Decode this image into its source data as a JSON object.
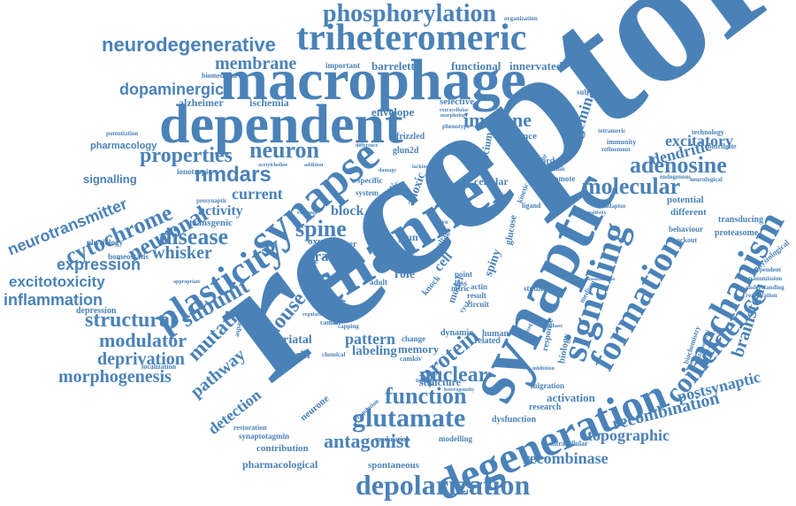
{
  "colors": {
    "word": "#4a82b8",
    "background": "#ffffff"
  },
  "words": [
    "receptor",
    "synaptic",
    "channel",
    "macrophage",
    "dependent",
    "triheteromeric",
    "phosphorylation",
    "synapse",
    "plasticity",
    "degeneration",
    "signaling",
    "mechanism",
    "formation",
    "coincidence",
    "glutamate",
    "depolarization",
    "neurodegenerative",
    "dopaminergic",
    "membrane",
    "adenosine",
    "molecular",
    "nmdars",
    "properties",
    "neuron",
    "structural",
    "modulator",
    "deprivation",
    "morphogenesis",
    "inflammation",
    "excitotoxicity",
    "expression",
    "neurotransmitter",
    "cytochrome",
    "neuronal",
    "disease",
    "whisker",
    "subunit",
    "mutation",
    "pathway",
    "detection",
    "function",
    "antagonist",
    "nuclear",
    "protein",
    "recombination",
    "topographic",
    "recombinase",
    "postsynaptic",
    "brainstem",
    "excitatory",
    "dendritic",
    "immune",
    "trigeminal",
    "spine",
    "current",
    "activity",
    "mouse",
    "brain",
    "block",
    "signalling",
    "pharmacology",
    "alzheimer",
    "ischemia",
    "barrelette",
    "functional",
    "innervated",
    "important",
    "envelope",
    "selective",
    "striatal",
    "tenascin",
    "pattern",
    "labeling",
    "memory",
    "structure",
    "activation",
    "research",
    "migration",
    "dysfunction",
    "modelling",
    "spontaneous",
    "pharmacological",
    "contribution",
    "synaptotagmin",
    "restoration",
    "modulation",
    "neurone",
    "localization",
    "depression",
    "physiology",
    "homeostasis",
    "transgenic",
    "ionotropic",
    "biomedicine",
    "potentiation",
    "organization",
    "substantia",
    "science",
    "technology",
    "neurological",
    "endogenous",
    "transducing",
    "proteasome",
    "behaviour",
    "knockout",
    "physiological",
    "independent",
    "transmission",
    "understanding",
    "reactivation",
    "biochemistry",
    "conformational",
    "intracellular",
    "regulation",
    "change",
    "dynamic",
    "related",
    "human",
    "nitric",
    "oxygen",
    "role",
    "glun",
    "cell",
    "anoxic",
    "knock",
    "model",
    "point",
    "loss",
    "result",
    "actin",
    "circuit",
    "studies",
    "cellular",
    "calcium",
    "glucose",
    "spiny",
    "frizzled",
    "glun2d",
    "specific",
    "system",
    "control",
    "genetic",
    "biology",
    "medium",
    "response",
    "ischemic",
    "promote",
    "keyword",
    "immunity",
    "refinement",
    "tetrameric",
    "cultured",
    "kinetic",
    "ligand",
    "adaptor",
    "contribute",
    "different",
    "potential",
    "capping",
    "camkii",
    "camkiv",
    "chemical",
    "aspartate",
    "appropriate",
    "addition",
    "acetylcholine",
    "exchange",
    "spatial",
    "trigger",
    "variant",
    "adult",
    "voltage",
    "vivo",
    "cycle",
    "negative",
    "regulator",
    "heterogeneity",
    "sensitivity",
    "extracellular",
    "morphology",
    "synthase",
    "inhibition",
    "gating",
    "compartmentalization",
    "presynaptic",
    "difference",
    "damage",
    "phenotype",
    "lacking"
  ]
}
